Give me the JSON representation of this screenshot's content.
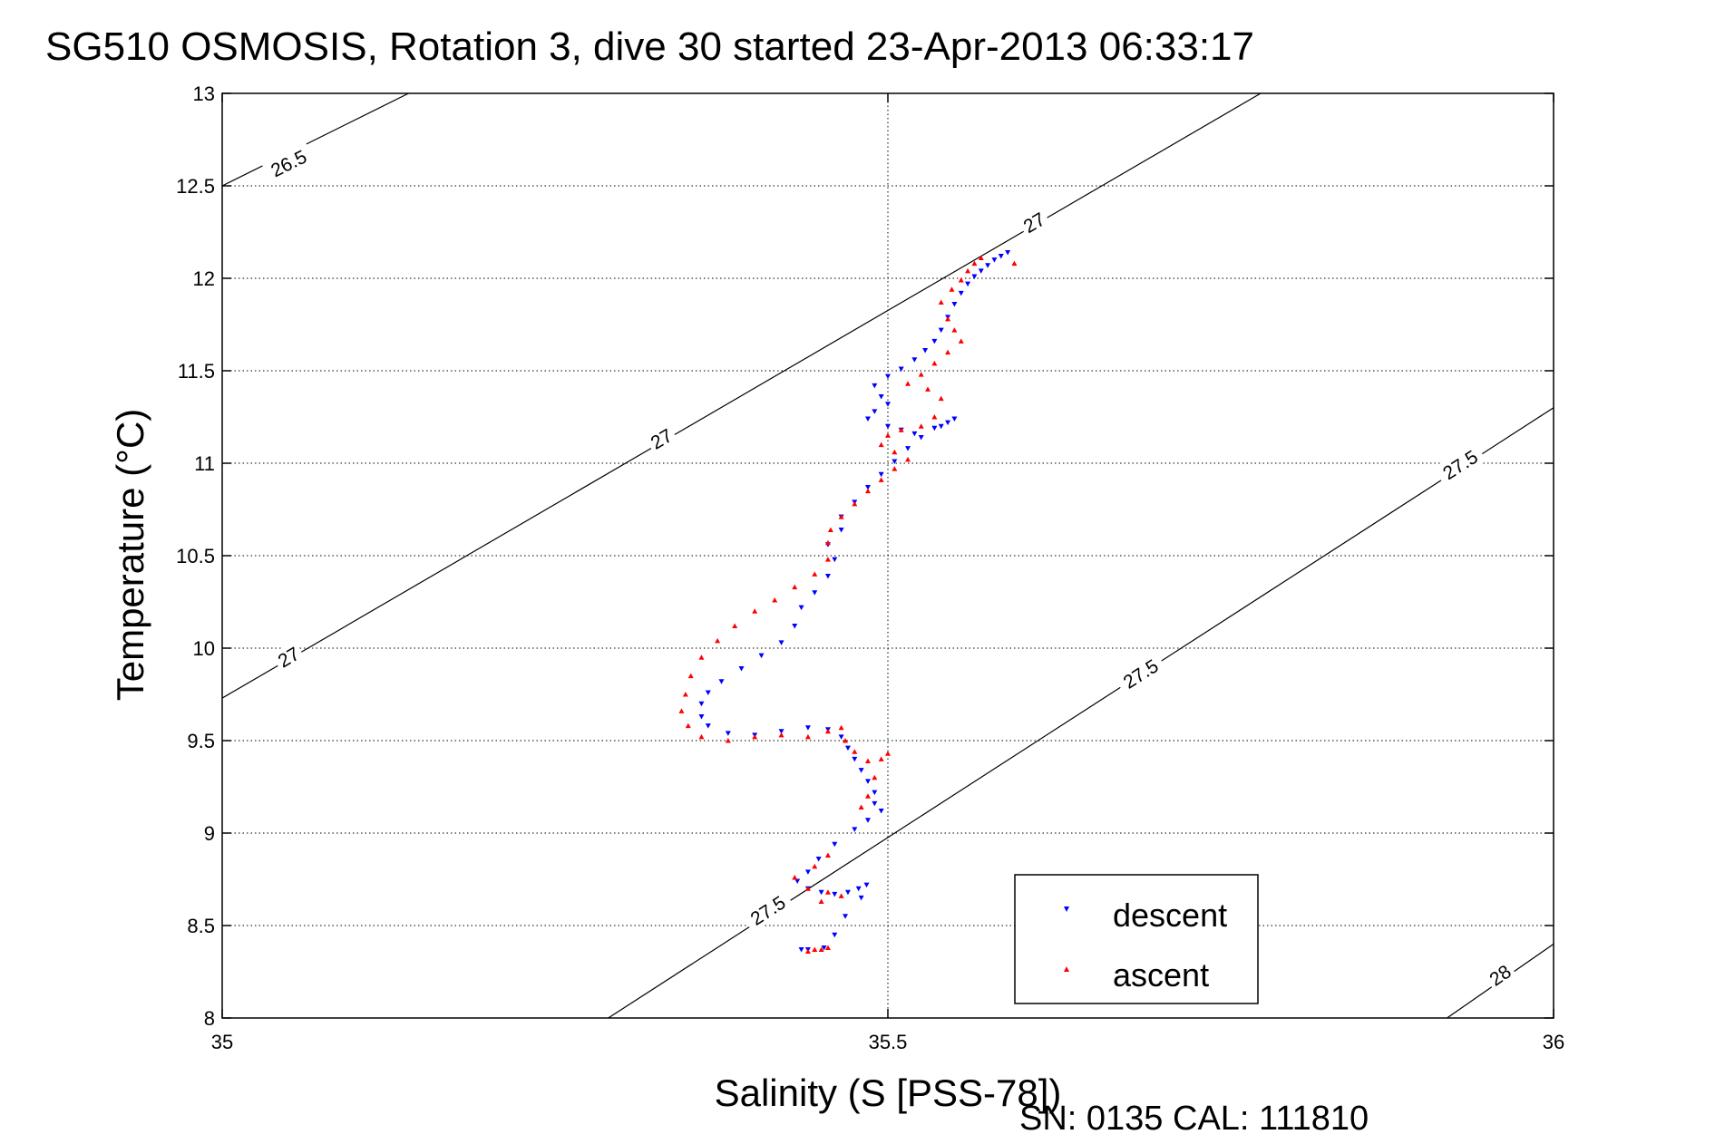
{
  "chart_data": {
    "type": "scatter",
    "title": "SG510 OSMOSIS, Rotation 3, dive 30 started 23-Apr-2013 06:33:17",
    "xlabel": "Salinity (S [PSS-78])",
    "ylabel": "Temperature (°C)",
    "xlim": [
      35,
      36
    ],
    "ylim": [
      8,
      13
    ],
    "x_ticks": [
      35,
      35.5,
      36
    ],
    "x_tick_labels": [
      "35",
      "35.5",
      "36"
    ],
    "y_ticks": [
      8,
      8.5,
      9,
      9.5,
      10,
      10.5,
      11,
      11.5,
      12,
      12.5,
      13
    ],
    "y_tick_labels": [
      "8",
      "8.5",
      "9",
      "9.5",
      "10",
      "10.5",
      "11",
      "11.5",
      "12",
      "12.5",
      "13"
    ],
    "grid": true,
    "legend_position": "bottom-right",
    "footer_text": "SN: 0135  CAL: 111810",
    "isopycnals": [
      {
        "label": "26.5",
        "points": [
          [
            35.0,
            12.5
          ],
          [
            35.14,
            13.0
          ]
        ],
        "label_at": [
          [
            35.05,
            12.62
          ]
        ]
      },
      {
        "label": "27",
        "points": [
          [
            35.0,
            9.73
          ],
          [
            35.78,
            13.0
          ]
        ],
        "label_at": [
          [
            35.05,
            9.95
          ],
          [
            35.33,
            11.13
          ],
          [
            35.61,
            12.3
          ]
        ]
      },
      {
        "label": "27.5",
        "points": [
          [
            35.29,
            8.0
          ],
          [
            36.0,
            11.3
          ]
        ],
        "label_at": [
          [
            35.41,
            8.58
          ],
          [
            35.69,
            9.86
          ],
          [
            35.93,
            10.99
          ]
        ]
      },
      {
        "label": "28",
        "points": [
          [
            35.92,
            8.0
          ],
          [
            36.0,
            8.4
          ]
        ],
        "label_at": [
          [
            35.96,
            8.23
          ]
        ]
      }
    ],
    "series": [
      {
        "name": "descent",
        "marker": "triangle-down",
        "color": "#0000ff",
        "points": [
          [
            35.59,
            12.14
          ],
          [
            35.585,
            12.12
          ],
          [
            35.58,
            12.1
          ],
          [
            35.575,
            12.07
          ],
          [
            35.57,
            12.04
          ],
          [
            35.565,
            12.01
          ],
          [
            35.56,
            11.97
          ],
          [
            35.555,
            11.92
          ],
          [
            35.55,
            11.86
          ],
          [
            35.545,
            11.79
          ],
          [
            35.54,
            11.72
          ],
          [
            35.535,
            11.66
          ],
          [
            35.528,
            11.61
          ],
          [
            35.52,
            11.56
          ],
          [
            35.51,
            11.51
          ],
          [
            35.5,
            11.47
          ],
          [
            35.49,
            11.42
          ],
          [
            35.495,
            11.36
          ],
          [
            35.5,
            11.32
          ],
          [
            35.49,
            11.28
          ],
          [
            35.485,
            11.24
          ],
          [
            35.5,
            11.2
          ],
          [
            35.51,
            11.18
          ],
          [
            35.52,
            11.16
          ],
          [
            35.535,
            11.19
          ],
          [
            35.545,
            11.22
          ],
          [
            35.55,
            11.24
          ],
          [
            35.54,
            11.2
          ],
          [
            35.525,
            11.14
          ],
          [
            35.515,
            11.08
          ],
          [
            35.505,
            11.01
          ],
          [
            35.495,
            10.94
          ],
          [
            35.485,
            10.87
          ],
          [
            35.475,
            10.79
          ],
          [
            35.465,
            10.71
          ],
          [
            35.465,
            10.64
          ],
          [
            35.455,
            10.56
          ],
          [
            35.46,
            10.48
          ],
          [
            35.455,
            10.39
          ],
          [
            35.445,
            10.3
          ],
          [
            35.435,
            10.22
          ],
          [
            35.43,
            10.12
          ],
          [
            35.42,
            10.03
          ],
          [
            35.405,
            9.96
          ],
          [
            35.39,
            9.89
          ],
          [
            35.375,
            9.82
          ],
          [
            35.365,
            9.76
          ],
          [
            35.36,
            9.7
          ],
          [
            35.36,
            9.63
          ],
          [
            35.365,
            9.58
          ],
          [
            35.38,
            9.54
          ],
          [
            35.4,
            9.53
          ],
          [
            35.42,
            9.55
          ],
          [
            35.44,
            9.57
          ],
          [
            35.455,
            9.56
          ],
          [
            35.465,
            9.52
          ],
          [
            35.47,
            9.46
          ],
          [
            35.475,
            9.4
          ],
          [
            35.48,
            9.34
          ],
          [
            35.485,
            9.28
          ],
          [
            35.49,
            9.22
          ],
          [
            35.49,
            9.16
          ],
          [
            35.495,
            9.12
          ],
          [
            35.485,
            9.07
          ],
          [
            35.475,
            9.02
          ],
          [
            35.46,
            8.94
          ],
          [
            35.448,
            8.86
          ],
          [
            35.44,
            8.79
          ],
          [
            35.432,
            8.74
          ],
          [
            35.44,
            8.7
          ],
          [
            35.45,
            8.68
          ],
          [
            35.46,
            8.67
          ],
          [
            35.47,
            8.68
          ],
          [
            35.478,
            8.7
          ],
          [
            35.484,
            8.72
          ],
          [
            35.48,
            8.65
          ],
          [
            35.468,
            8.55
          ],
          [
            35.46,
            8.45
          ],
          [
            35.452,
            8.38
          ],
          [
            35.44,
            8.37
          ],
          [
            35.435,
            8.37
          ]
        ]
      },
      {
        "name": "ascent",
        "marker": "triangle-up",
        "color": "#ff0000",
        "points": [
          [
            35.595,
            12.08
          ],
          [
            35.57,
            12.11
          ],
          [
            35.565,
            12.08
          ],
          [
            35.56,
            12.04
          ],
          [
            35.555,
            11.99
          ],
          [
            35.548,
            11.94
          ],
          [
            35.54,
            11.87
          ],
          [
            35.545,
            11.78
          ],
          [
            35.55,
            11.72
          ],
          [
            35.555,
            11.66
          ],
          [
            35.545,
            11.6
          ],
          [
            35.535,
            11.54
          ],
          [
            35.525,
            11.48
          ],
          [
            35.515,
            11.43
          ],
          [
            35.53,
            11.4
          ],
          [
            35.54,
            11.35
          ],
          [
            35.535,
            11.25
          ],
          [
            35.525,
            11.2
          ],
          [
            35.51,
            11.18
          ],
          [
            35.5,
            11.15
          ],
          [
            35.495,
            11.1
          ],
          [
            35.505,
            11.06
          ],
          [
            35.515,
            11.02
          ],
          [
            35.505,
            10.97
          ],
          [
            35.495,
            10.91
          ],
          [
            35.485,
            10.85
          ],
          [
            35.475,
            10.78
          ],
          [
            35.465,
            10.71
          ],
          [
            35.457,
            10.64
          ],
          [
            35.455,
            10.57
          ],
          [
            35.455,
            10.48
          ],
          [
            35.445,
            10.4
          ],
          [
            35.43,
            10.33
          ],
          [
            35.415,
            10.26
          ],
          [
            35.4,
            10.2
          ],
          [
            35.385,
            10.12
          ],
          [
            35.372,
            10.04
          ],
          [
            35.36,
            9.95
          ],
          [
            35.352,
            9.85
          ],
          [
            35.348,
            9.75
          ],
          [
            35.345,
            9.66
          ],
          [
            35.35,
            9.58
          ],
          [
            35.36,
            9.52
          ],
          [
            35.38,
            9.5
          ],
          [
            35.4,
            9.52
          ],
          [
            35.42,
            9.53
          ],
          [
            35.44,
            9.52
          ],
          [
            35.455,
            9.55
          ],
          [
            35.465,
            9.57
          ],
          [
            35.468,
            9.5
          ],
          [
            35.475,
            9.44
          ],
          [
            35.485,
            9.39
          ],
          [
            35.495,
            9.4
          ],
          [
            35.5,
            9.43
          ],
          [
            35.49,
            9.3
          ],
          [
            35.485,
            9.2
          ],
          [
            35.48,
            9.14
          ],
          [
            35.455,
            8.88
          ],
          [
            35.445,
            8.82
          ],
          [
            35.43,
            8.76
          ],
          [
            35.44,
            8.7
          ],
          [
            35.455,
            8.68
          ],
          [
            35.465,
            8.66
          ],
          [
            35.45,
            8.63
          ],
          [
            35.445,
            8.37
          ],
          [
            35.44,
            8.36
          ],
          [
            35.45,
            8.37
          ],
          [
            35.455,
            8.38
          ]
        ]
      }
    ]
  }
}
